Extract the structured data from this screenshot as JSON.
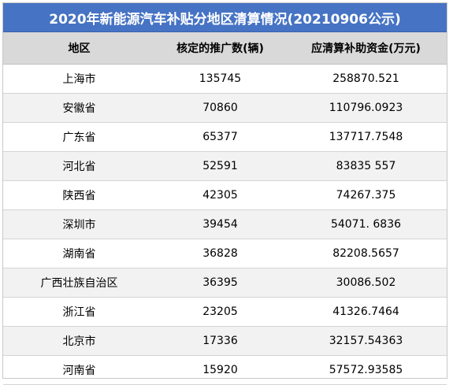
{
  "title": "2020年新能源汽车补贴分地区清算情况(20210906公示)",
  "columns": [
    "地区",
    "核定的推广数(辆)",
    "应清算补助资金(万元)"
  ],
  "rows": [
    {
      "region": "上海市",
      "count": "135745",
      "funds": "258870.521"
    },
    {
      "region": "安徽省",
      "count": "70860",
      "funds": "110796.0923"
    },
    {
      "region": "广东省",
      "count": "65377",
      "funds": "137717.7548"
    },
    {
      "region": "河北省",
      "count": "52591",
      "funds": "83835 557"
    },
    {
      "region": "陕西省",
      "count": "42305",
      "funds": "74267.375"
    },
    {
      "region": "深圳市",
      "count": "39454",
      "funds": "54071. 6836"
    },
    {
      "region": "湖南省",
      "count": "36828",
      "funds": "82208.5657"
    },
    {
      "region": "广西壮族自治区",
      "count": "36395",
      "funds": "30086.502"
    },
    {
      "region": "浙江省",
      "count": "23205",
      "funds": "41326.7464"
    },
    {
      "region": "北京市",
      "count": "17336",
      "funds": "32157.54363"
    },
    {
      "region": "河南省",
      "count": "15920",
      "funds": "57572.93585"
    }
  ],
  "colors": {
    "title_bg": "#4673c4",
    "header_bg": "#d9d9d9",
    "stripe_bg": "#f2f2f2"
  }
}
